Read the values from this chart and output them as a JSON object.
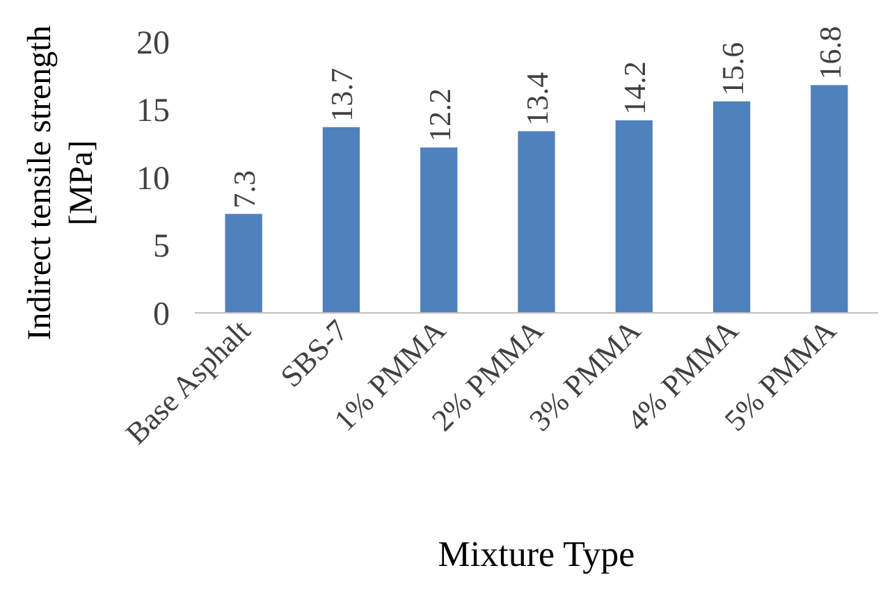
{
  "chart_data": {
    "type": "bar",
    "xlabel": "Mixture Type",
    "ylabel": "Indirect tensile strength [MPa]",
    "categories": [
      "Base Asphalt",
      "SBS-7",
      "1% PMMA",
      "2% PMMA",
      "3% PMMA",
      "4% PMMA",
      "5% PMMA"
    ],
    "values": [
      7.3,
      13.7,
      12.2,
      13.4,
      14.2,
      15.6,
      16.8
    ],
    "color": "#4f81bd",
    "ylim": [
      0,
      20
    ],
    "yticks": [
      0,
      5,
      10,
      15,
      20
    ],
    "data_labels": true
  }
}
